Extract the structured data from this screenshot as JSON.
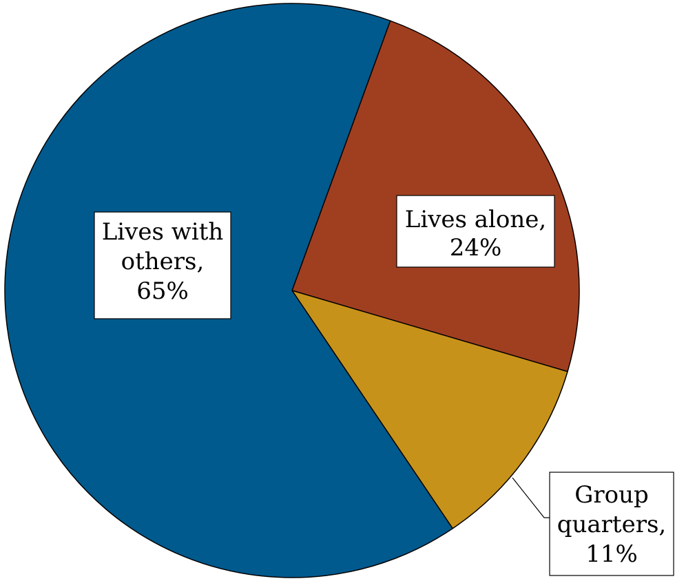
{
  "chart_data": {
    "type": "pie",
    "title": "",
    "start_angle_deg": 20,
    "direction": "clockwise",
    "slices": [
      {
        "category": "Lives alone",
        "value": 24,
        "label": [
          "Lives alone,",
          "24%"
        ],
        "color": "#A03F20"
      },
      {
        "category": "Group quarters",
        "value": 11,
        "label": [
          "Group",
          "quarters,",
          "11%"
        ],
        "color": "#C7921A"
      },
      {
        "category": "Lives with others",
        "value": 65,
        "label": [
          "Lives with",
          "others,",
          "65%"
        ],
        "color": "#005A8E"
      }
    ],
    "legend": "none",
    "label_style": "boxed data labels with category and percent"
  }
}
